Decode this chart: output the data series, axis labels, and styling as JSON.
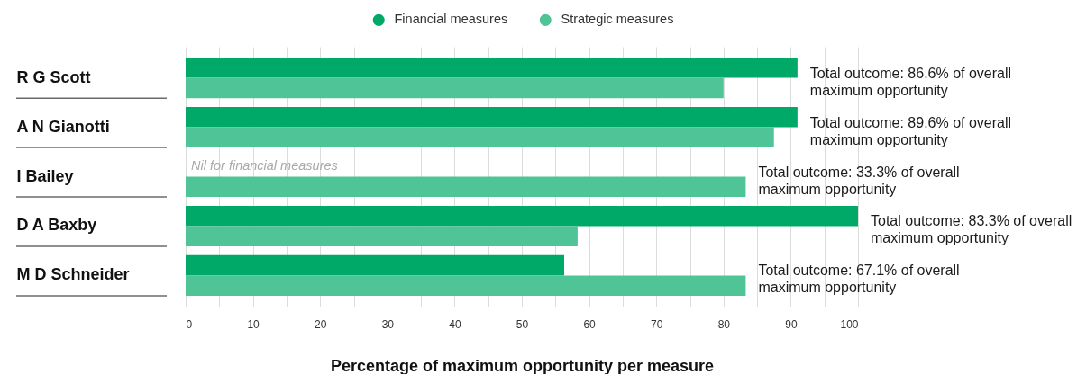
{
  "chart_data": {
    "type": "bar",
    "orientation": "horizontal",
    "categories": [
      "R G Scott",
      "A N Gianotti",
      "I Bailey",
      "D A Baxby",
      "M D Schneider"
    ],
    "series": [
      {
        "name": "Financial measures",
        "color": "#00a968",
        "values": [
          91,
          91,
          null,
          100,
          56.3
        ]
      },
      {
        "name": "Strategic measures",
        "color": "#4fc597",
        "values": [
          80,
          87.5,
          83.3,
          58.3,
          83.3
        ]
      }
    ],
    "xlabel": "Percentage of maximum opportunity per measure",
    "xlim": [
      0,
      100
    ],
    "xticks": [
      0,
      {
        "value": 5,
        "label": null
      },
      10,
      {
        "value": 15,
        "label": null
      },
      20,
      {
        "value": 25,
        "label": null
      },
      30,
      {
        "value": 35,
        "label": null
      },
      40,
      {
        "value": 45,
        "label": null
      },
      50,
      {
        "value": 55,
        "label": null
      },
      60,
      {
        "value": 65,
        "label": null
      },
      70,
      {
        "value": 75,
        "label": null
      },
      80,
      {
        "value": 85,
        "label": null
      },
      90,
      {
        "value": 95,
        "label": null
      },
      100
    ],
    "grid": "x",
    "legend": "top",
    "annotations": [
      {
        "text": "Nil for financial measures",
        "x": 0,
        "y": "I Bailey"
      },
      {
        "text": "Total outcome: 86.6% of overall maximum opportunity",
        "x": 91,
        "y": "R G Scott"
      },
      {
        "text": "Total outcome: 89.6% of overall maximum opportunity",
        "x": 91,
        "y": "A N Gianotti"
      },
      {
        "text": "Total outcome: 33.3% of overall maximum opportunity",
        "x": 83.3,
        "y": "I Bailey"
      },
      {
        "text": "Total outcome: 83.3% of overall maximum opportunity",
        "x": 100,
        "y": "D A Baxby"
      },
      {
        "text": "Total outcome: 67.1% of overall maximum opportunity",
        "x": 83.3,
        "y": "M D Schneider"
      }
    ]
  }
}
